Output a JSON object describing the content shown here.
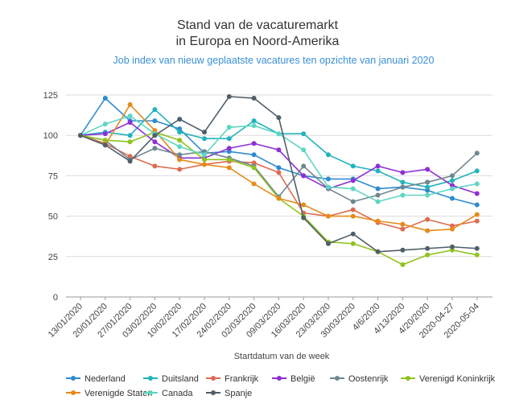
{
  "chart_data": {
    "type": "line",
    "title": [
      "Stand van de vacaturemarkt",
      "in Europa en Noord-Amerika"
    ],
    "subtitle": "Job index van nieuw geplaatste vacatures ten opzichte van januari 2020",
    "xlabel": "Startdatum van de week",
    "ylabel": "",
    "ylim": [
      0,
      125
    ],
    "yticks": [
      0,
      25,
      50,
      75,
      100,
      125
    ],
    "grid": true,
    "legend_position": "bottom",
    "categories": [
      "13/01/2020",
      "20/01/2020",
      "27/01/2020",
      "03/02/2020",
      "10/02/2020",
      "17/02/2020",
      "24/02/2020",
      "02/03/2020",
      "09/03/2020",
      "16/03/2020",
      "23/03/2020",
      "30/03/2020",
      "4/6/2020",
      "4/13/2020",
      "4/20/2020",
      "2020-04-27",
      "2020-05-04"
    ],
    "series": [
      {
        "name": "Nederland",
        "color": "#2e8bd0",
        "values": [
          100,
          123,
          109,
          109,
          104,
          89,
          90,
          88,
          80,
          75,
          73,
          73,
          67,
          68,
          66,
          61,
          57
        ]
      },
      {
        "name": "Duitsland",
        "color": "#22b3bd",
        "values": [
          100,
          102,
          100,
          116,
          102,
          98,
          98,
          109,
          101,
          101,
          88,
          81,
          78,
          71,
          68,
          72,
          78
        ]
      },
      {
        "name": "Frankrijk",
        "color": "#de6b50",
        "values": [
          100,
          95,
          87,
          81,
          79,
          82,
          84,
          83,
          77,
          52,
          50,
          54,
          46,
          42,
          48,
          44,
          47
        ]
      },
      {
        "name": "België",
        "color": "#8e2ed6",
        "values": [
          100,
          101,
          108,
          96,
          86,
          86,
          92,
          95,
          91,
          75,
          67,
          72,
          81,
          77,
          79,
          69,
          64
        ]
      },
      {
        "name": "Oostenrijk",
        "color": "#6f8791",
        "values": [
          100,
          97,
          85,
          92,
          88,
          90,
          86,
          81,
          62,
          81,
          67,
          59,
          63,
          68,
          71,
          75,
          89
        ]
      },
      {
        "name": "Verenigd Koninkrijk",
        "color": "#8fc31f",
        "values": [
          100,
          97,
          96,
          102,
          97,
          85,
          85,
          80,
          61,
          50,
          34,
          33,
          28,
          20,
          26,
          29,
          26
        ]
      },
      {
        "name": "Verenigde Staten",
        "color": "#e58b1a",
        "values": [
          100,
          94,
          119,
          103,
          85,
          82,
          80,
          70,
          61,
          57,
          50,
          50,
          47,
          45,
          41,
          42,
          51
        ]
      },
      {
        "name": "Canada",
        "color": "#5fd6c2",
        "values": [
          100,
          107,
          112,
          101,
          93,
          88,
          105,
          106,
          101,
          91,
          68,
          67,
          59,
          63,
          63,
          67,
          70
        ]
      },
      {
        "name": "Spanje",
        "color": "#4f5f69",
        "values": [
          100,
          94,
          84,
          100,
          110,
          102,
          124,
          123,
          111,
          49,
          33,
          39,
          28,
          29,
          30,
          31,
          30
        ]
      }
    ]
  }
}
